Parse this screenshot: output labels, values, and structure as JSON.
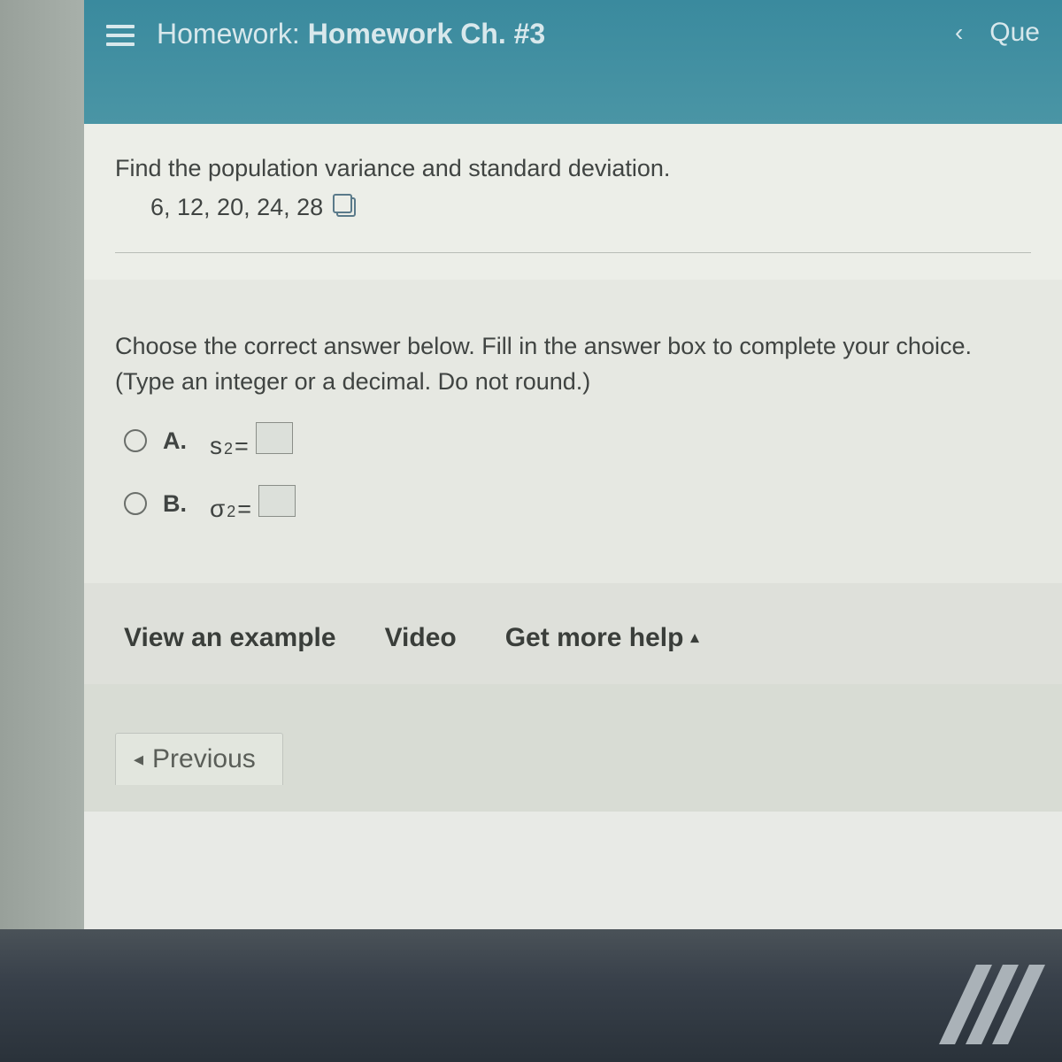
{
  "header": {
    "title_prefix": "Homework:",
    "title_main": "Homework Ch. #3",
    "right_label": "Que"
  },
  "question": {
    "prompt": "Find the population variance and standard deviation.",
    "data": "6, 12, 20, 24, 28"
  },
  "answer": {
    "instruction_line1": "Choose the correct answer below. Fill in the answer box to complete your choice.",
    "instruction_line2": "(Type an integer or a decimal. Do not round.)",
    "options": {
      "a": {
        "label": "A.",
        "symbol": "s",
        "sup": "2",
        "eq": " ="
      },
      "b": {
        "label": "B.",
        "symbol": "σ",
        "sup": "2",
        "eq": " ="
      }
    }
  },
  "help": {
    "example": "View an example",
    "video": "Video",
    "more": "Get more help"
  },
  "nav": {
    "previous": "Previous"
  }
}
